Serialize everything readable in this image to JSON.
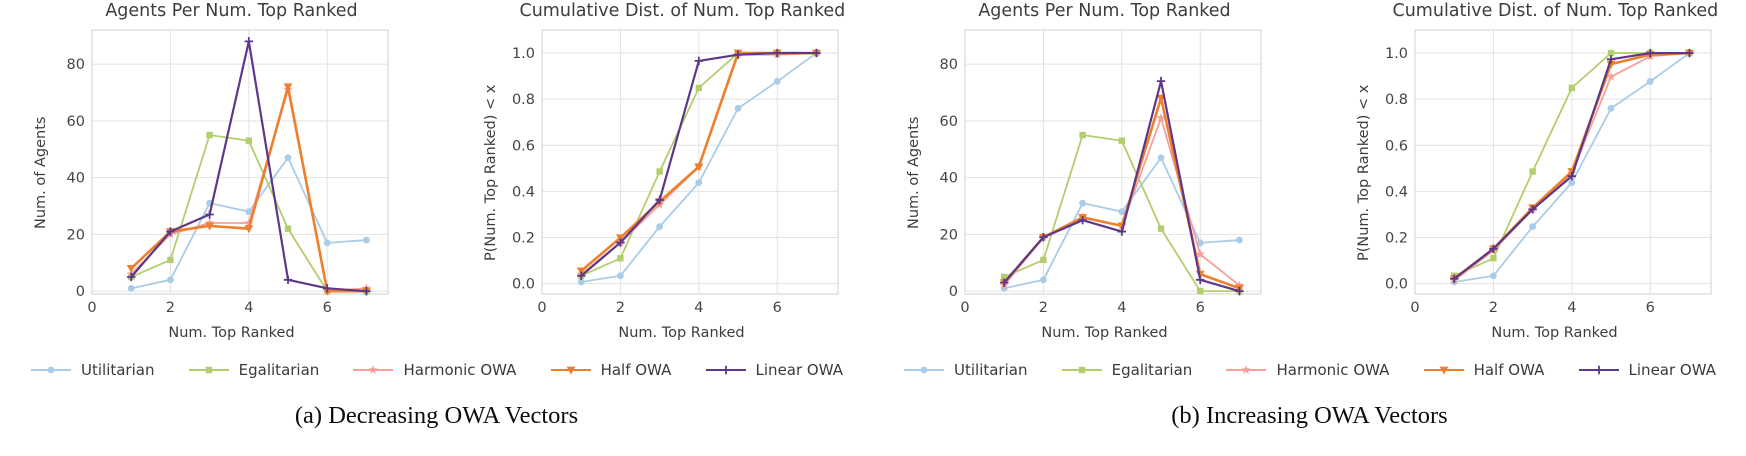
{
  "figure": {
    "captions": [
      "(a) Decreasing OWA Vectors",
      "(b) Increasing OWA Vectors"
    ],
    "legend": {
      "items": [
        {
          "label": "Utilitarian",
          "color": "#A9CDE8",
          "marker": "circle"
        },
        {
          "label": "Egalitarian",
          "color": "#B3CE6C",
          "marker": "square"
        },
        {
          "label": "Harmonic OWA",
          "color": "#F5A09C",
          "marker": "star"
        },
        {
          "label": "Half OWA",
          "color": "#EE7F2D",
          "marker": "triangle-down"
        },
        {
          "label": "Linear OWA",
          "color": "#5D3889",
          "marker": "plus"
        }
      ]
    },
    "style": {
      "grid_color": "#e2e2e2",
      "border_color": "#d8d8d8",
      "tick_color": "#454545",
      "background": "#ffffff"
    }
  },
  "chart_data": [
    {
      "type": "line",
      "title": "Agents Per Num. Top Ranked",
      "xlabel": "Num. Top Ranked",
      "ylabel": "Num. of Agents",
      "x": [
        1,
        2,
        3,
        4,
        5,
        6,
        7
      ],
      "xlim": [
        0,
        7.55
      ],
      "ylim": [
        -1,
        92
      ],
      "xtick_values": [
        0,
        2,
        4,
        6
      ],
      "xtick_labels": [
        "0",
        "2",
        "4",
        "6"
      ],
      "ytick_values": [
        0,
        20,
        40,
        60,
        80
      ],
      "ytick_labels": [
        "0",
        "20",
        "40",
        "60",
        "80"
      ],
      "grid": true,
      "legend_position": "below",
      "series": [
        {
          "name": "Utilitarian",
          "color": "#A9CDE8",
          "marker": "circle",
          "lw": 1.8,
          "values": [
            1,
            4,
            31,
            28,
            47,
            17,
            18
          ]
        },
        {
          "name": "Egalitarian",
          "color": "#B3CE6C",
          "marker": "square",
          "lw": 1.8,
          "values": [
            5,
            11,
            55,
            53,
            22,
            0,
            0
          ]
        },
        {
          "name": "Harmonic OWA",
          "color": "#F5A09C",
          "marker": "star",
          "lw": 1.8,
          "values": [
            6,
            20,
            24,
            24,
            71,
            0,
            1
          ]
        },
        {
          "name": "Half OWA",
          "color": "#EE7F2D",
          "marker": "triangle-down",
          "lw": 2.6,
          "values": [
            8,
            21,
            23,
            22,
            72,
            0,
            0
          ]
        },
        {
          "name": "Linear OWA",
          "color": "#5D3889",
          "marker": "plus",
          "lw": 2.2,
          "values": [
            5,
            21,
            27,
            88,
            4,
            1,
            0
          ]
        }
      ]
    },
    {
      "type": "line",
      "title": "Cumulative Dist. of Num. Top Ranked",
      "xlabel": "Num. Top Ranked",
      "ylabel": "P(Num. Top Ranked) < x",
      "x": [
        1,
        2,
        3,
        4,
        5,
        6,
        7
      ],
      "xlim": [
        0,
        7.55
      ],
      "ylim": [
        -0.045,
        1.1
      ],
      "xtick_values": [
        0,
        2,
        4,
        6
      ],
      "xtick_labels": [
        "0",
        "2",
        "4",
        "6"
      ],
      "ytick_values": [
        0.0,
        0.2,
        0.4,
        0.6,
        0.8,
        1.0
      ],
      "ytick_labels": [
        "0.0",
        "0.2",
        "0.4",
        "0.6",
        "0.8",
        "1.0"
      ],
      "grid": true,
      "legend_position": "below",
      "series": [
        {
          "name": "Utilitarian",
          "color": "#A9CDE8",
          "marker": "circle",
          "lw": 1.8,
          "values": [
            0.007,
            0.034,
            0.247,
            0.438,
            0.76,
            0.877,
            1.0
          ]
        },
        {
          "name": "Egalitarian",
          "color": "#B3CE6C",
          "marker": "square",
          "lw": 1.8,
          "values": [
            0.034,
            0.11,
            0.486,
            0.849,
            1.0,
            1.0,
            1.0
          ]
        },
        {
          "name": "Harmonic OWA",
          "color": "#F5A09C",
          "marker": "star",
          "lw": 1.8,
          "values": [
            0.041,
            0.178,
            0.342,
            0.507,
            0.993,
            0.993,
            1.0
          ]
        },
        {
          "name": "Half OWA",
          "color": "#EE7F2D",
          "marker": "triangle-down",
          "lw": 2.6,
          "values": [
            0.055,
            0.199,
            0.356,
            0.507,
            1.0,
            1.0,
            1.0
          ]
        },
        {
          "name": "Linear OWA",
          "color": "#5D3889",
          "marker": "plus",
          "lw": 2.2,
          "values": [
            0.034,
            0.178,
            0.363,
            0.966,
            0.993,
            1.0,
            1.0
          ]
        }
      ]
    },
    {
      "type": "line",
      "title": "Agents Per Num. Top Ranked",
      "xlabel": "Num. Top Ranked",
      "ylabel": "Num. of Agents",
      "x": [
        1,
        2,
        3,
        4,
        5,
        6,
        7
      ],
      "xlim": [
        0,
        7.55
      ],
      "ylim": [
        -1,
        92
      ],
      "xtick_values": [
        0,
        2,
        4,
        6
      ],
      "xtick_labels": [
        "0",
        "2",
        "4",
        "6"
      ],
      "ytick_values": [
        0,
        20,
        40,
        60,
        80
      ],
      "ytick_labels": [
        "0",
        "20",
        "40",
        "60",
        "80"
      ],
      "grid": true,
      "legend_position": "below",
      "series": [
        {
          "name": "Utilitarian",
          "color": "#A9CDE8",
          "marker": "circle",
          "lw": 1.8,
          "values": [
            1,
            4,
            31,
            28,
            47,
            17,
            18
          ]
        },
        {
          "name": "Egalitarian",
          "color": "#B3CE6C",
          "marker": "square",
          "lw": 1.8,
          "values": [
            5,
            11,
            55,
            53,
            22,
            0,
            0
          ]
        },
        {
          "name": "Harmonic OWA",
          "color": "#F5A09C",
          "marker": "star",
          "lw": 1.8,
          "values": [
            2,
            19,
            26,
            23,
            61,
            13,
            2
          ]
        },
        {
          "name": "Half OWA",
          "color": "#EE7F2D",
          "marker": "triangle-down",
          "lw": 2.6,
          "values": [
            3,
            19,
            26,
            23,
            68,
            6,
            1
          ]
        },
        {
          "name": "Linear OWA",
          "color": "#5D3889",
          "marker": "plus",
          "lw": 2.2,
          "values": [
            3,
            19,
            25,
            21,
            74,
            4,
            0
          ]
        }
      ]
    },
    {
      "type": "line",
      "title": "Cumulative Dist. of Num. Top Ranked",
      "xlabel": "Num. Top Ranked",
      "ylabel": "P(Num. Top Ranked) < x",
      "x": [
        1,
        2,
        3,
        4,
        5,
        6,
        7
      ],
      "xlim": [
        0,
        7.55
      ],
      "ylim": [
        -0.045,
        1.1
      ],
      "xtick_values": [
        0,
        2,
        4,
        6
      ],
      "xtick_labels": [
        "0",
        "2",
        "4",
        "6"
      ],
      "ytick_values": [
        0.0,
        0.2,
        0.4,
        0.6,
        0.8,
        1.0
      ],
      "ytick_labels": [
        "0.0",
        "0.2",
        "0.4",
        "0.6",
        "0.8",
        "1.0"
      ],
      "grid": true,
      "legend_position": "below",
      "series": [
        {
          "name": "Utilitarian",
          "color": "#A9CDE8",
          "marker": "circle",
          "lw": 1.8,
          "values": [
            0.007,
            0.034,
            0.247,
            0.438,
            0.76,
            0.877,
            1.0
          ]
        },
        {
          "name": "Egalitarian",
          "color": "#B3CE6C",
          "marker": "square",
          "lw": 1.8,
          "values": [
            0.034,
            0.11,
            0.486,
            0.849,
            1.0,
            1.0,
            1.0
          ]
        },
        {
          "name": "Harmonic OWA",
          "color": "#F5A09C",
          "marker": "star",
          "lw": 1.8,
          "values": [
            0.014,
            0.144,
            0.322,
            0.479,
            0.897,
            0.986,
            1.0
          ]
        },
        {
          "name": "Half OWA",
          "color": "#EE7F2D",
          "marker": "triangle-down",
          "lw": 2.6,
          "values": [
            0.021,
            0.151,
            0.329,
            0.486,
            0.952,
            0.993,
            1.0
          ]
        },
        {
          "name": "Linear OWA",
          "color": "#5D3889",
          "marker": "plus",
          "lw": 2.2,
          "values": [
            0.021,
            0.151,
            0.322,
            0.466,
            0.973,
            1.0,
            1.0
          ]
        }
      ]
    }
  ]
}
